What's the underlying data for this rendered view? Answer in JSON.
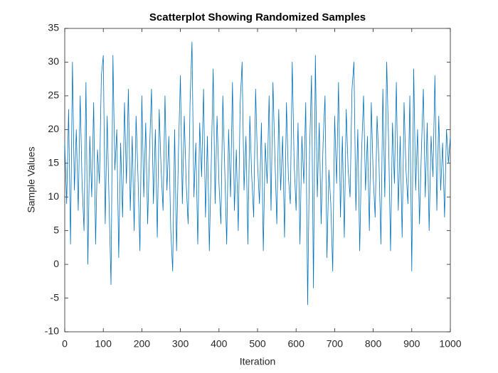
{
  "chart_data": {
    "type": "line",
    "title": "Scatterplot Showing Randomized Samples",
    "x_label": "Iteration",
    "y_label": "Sample Values",
    "xlim": [
      0,
      1000
    ],
    "ylim": [
      -10,
      35
    ],
    "xticks": [
      0,
      100,
      200,
      300,
      400,
      500,
      600,
      700,
      800,
      900,
      1000
    ],
    "yticks": [
      -10,
      -5,
      0,
      5,
      10,
      15,
      20,
      25,
      30,
      35
    ],
    "grid": false,
    "x": [
      0,
      5,
      10,
      15,
      20,
      25,
      30,
      35,
      40,
      45,
      50,
      55,
      60,
      65,
      70,
      75,
      80,
      85,
      90,
      95,
      100,
      105,
      110,
      115,
      120,
      125,
      130,
      135,
      140,
      145,
      150,
      155,
      160,
      165,
      170,
      175,
      180,
      185,
      190,
      195,
      200,
      205,
      210,
      215,
      220,
      225,
      230,
      235,
      240,
      245,
      250,
      255,
      260,
      265,
      270,
      275,
      280,
      285,
      290,
      295,
      300,
      305,
      310,
      315,
      320,
      325,
      330,
      335,
      340,
      345,
      350,
      355,
      360,
      365,
      370,
      375,
      380,
      385,
      390,
      395,
      400,
      405,
      410,
      415,
      420,
      425,
      430,
      435,
      440,
      445,
      450,
      455,
      460,
      465,
      470,
      475,
      480,
      485,
      490,
      495,
      500,
      505,
      510,
      515,
      520,
      525,
      530,
      535,
      540,
      545,
      550,
      555,
      560,
      565,
      570,
      575,
      580,
      585,
      590,
      595,
      600,
      605,
      610,
      615,
      620,
      625,
      630,
      635,
      640,
      645,
      650,
      655,
      660,
      665,
      670,
      675,
      680,
      685,
      690,
      695,
      700,
      705,
      710,
      715,
      720,
      725,
      730,
      735,
      740,
      745,
      750,
      755,
      760,
      765,
      770,
      775,
      780,
      785,
      790,
      795,
      800,
      805,
      810,
      815,
      820,
      825,
      830,
      835,
      840,
      845,
      850,
      855,
      860,
      865,
      870,
      875,
      880,
      885,
      890,
      895,
      900,
      905,
      910,
      915,
      920,
      925,
      930,
      935,
      940,
      945,
      950,
      955,
      960,
      965,
      970,
      975,
      980,
      985,
      990,
      995,
      1000
    ],
    "series": [
      {
        "color": "#0072bd",
        "values": [
          18,
          9,
          23,
          3,
          30,
          11,
          20,
          8,
          25,
          12,
          5,
          27,
          0,
          19,
          10,
          24,
          3,
          17,
          12,
          28,
          31,
          6,
          22,
          9,
          -3,
          31,
          14,
          20,
          1,
          18,
          7,
          24,
          12,
          26,
          8,
          19,
          5,
          22,
          13,
          2,
          25,
          10,
          21,
          6,
          17,
          26,
          9,
          20,
          4,
          23,
          14,
          8,
          25,
          11,
          19,
          5,
          -1,
          20,
          2,
          17,
          28,
          9,
          22,
          12,
          6,
          24,
          33,
          10,
          18,
          3,
          21,
          13,
          26,
          7,
          19,
          2,
          15,
          29,
          9,
          22,
          12,
          6,
          25,
          14,
          3,
          20,
          10,
          27,
          8,
          17,
          5,
          24,
          30,
          11,
          19,
          3,
          22,
          13,
          7,
          26,
          15,
          9,
          21,
          2,
          18,
          12,
          25,
          8,
          27,
          16,
          6,
          23,
          11,
          19,
          4,
          24,
          13,
          9,
          30,
          15,
          8,
          21,
          3,
          19,
          12,
          24,
          -6,
          17,
          28,
          -3.5,
          31,
          10,
          21,
          6,
          18,
          25,
          1,
          14,
          9,
          -1,
          22,
          12,
          27,
          7,
          19,
          4,
          23,
          14,
          10,
          26,
          30,
          8,
          20,
          2,
          17,
          25,
          11,
          19,
          5,
          24,
          13,
          7,
          22,
          15,
          3,
          26,
          10,
          30,
          18,
          2,
          21,
          12,
          27,
          8,
          19,
          4,
          24,
          14,
          9,
          25,
          -1,
          29,
          11,
          20,
          6,
          17,
          26,
          10,
          21,
          5,
          19,
          13,
          28,
          8,
          22,
          11,
          18,
          7,
          20,
          15,
          19
        ]
      }
    ]
  }
}
